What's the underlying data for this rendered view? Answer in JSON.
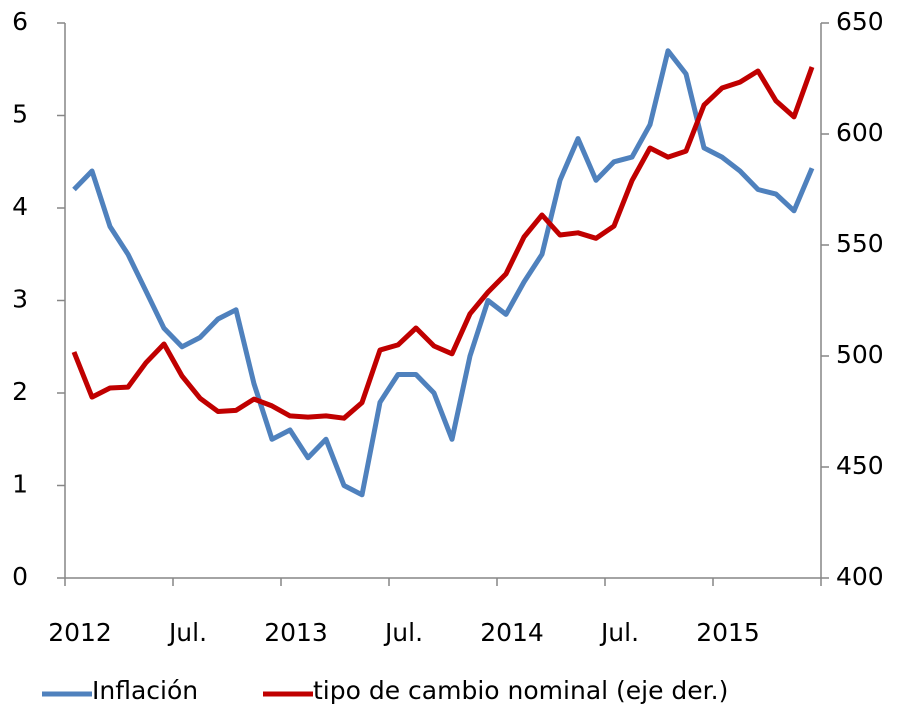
{
  "chart_data": {
    "type": "line",
    "categories": [
      "2012",
      null,
      null,
      null,
      null,
      null,
      "Jul.",
      null,
      null,
      null,
      null,
      null,
      "2013",
      null,
      null,
      null,
      null,
      null,
      "Jul.",
      null,
      null,
      null,
      null,
      null,
      "2014",
      null,
      null,
      null,
      null,
      null,
      "Jul.",
      null,
      null,
      null,
      null,
      null,
      "2015",
      null,
      null,
      null,
      null,
      null
    ],
    "series": [
      {
        "name": "Inflación",
        "color": "#4f81bd",
        "axis": "y",
        "values": [
          4.2,
          4.4,
          3.8,
          3.5,
          3.1,
          2.7,
          2.5,
          2.6,
          2.8,
          2.9,
          2.1,
          1.5,
          1.6,
          1.3,
          1.5,
          1.0,
          0.9,
          1.9,
          2.2,
          2.2,
          2.0,
          1.5,
          2.4,
          3.0,
          2.85,
          3.2,
          3.5,
          4.3,
          4.75,
          4.3,
          4.5,
          4.55,
          4.9,
          5.7,
          5.45,
          4.65,
          4.55,
          4.4,
          4.2,
          4.15,
          3.97,
          4.43
        ]
      },
      {
        "name": "tipo de cambio nominal (eje der.)",
        "color": "#c00000",
        "axis": "y2",
        "values": [
          501.8,
          481.5,
          485.6,
          486,
          497,
          505.4,
          491,
          481,
          475,
          475.5,
          480.6,
          477.5,
          473,
          472.5,
          473,
          472,
          479,
          502.7,
          505,
          512.6,
          504.5,
          501,
          519,
          528.8,
          537,
          553.6,
          563.5,
          554.5,
          555.5,
          553,
          558.5,
          579,
          593.7,
          589.6,
          592.3,
          613,
          620.7,
          623.4,
          628.4,
          614.9,
          607.7,
          630.2
        ]
      }
    ],
    "ylim": [
      0,
      6
    ],
    "yticks": [
      0,
      1,
      2,
      3,
      4,
      5,
      6
    ],
    "y2lim": [
      400,
      650
    ],
    "y2ticks": [
      400,
      450,
      500,
      550,
      600,
      650
    ],
    "legend": "bottom"
  }
}
